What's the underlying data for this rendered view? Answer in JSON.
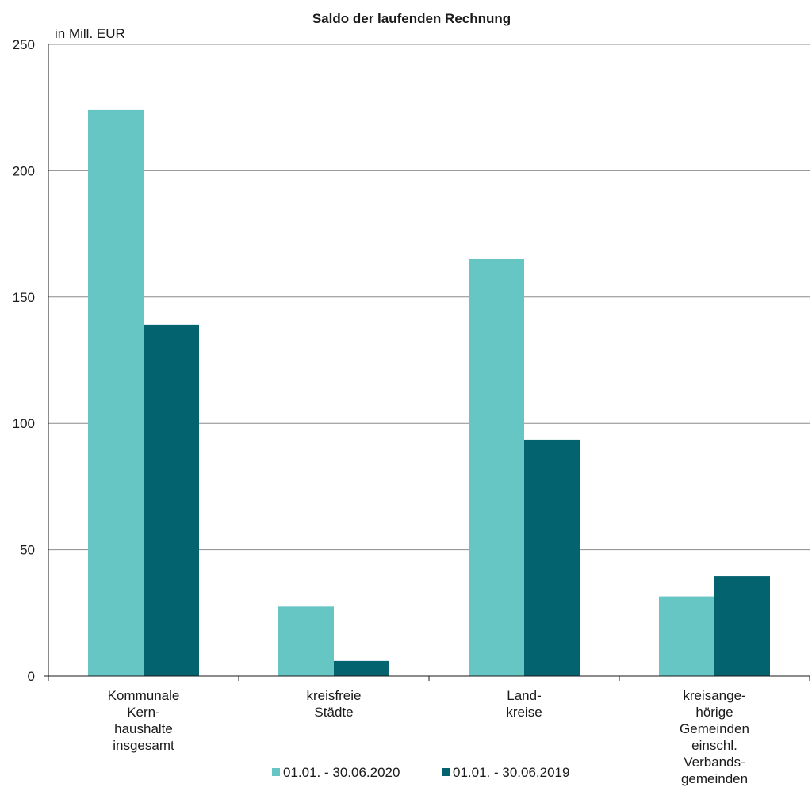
{
  "chart_data": {
    "type": "bar",
    "title": "Saldo der laufenden Rechnung",
    "ylabel": "in Mill. EUR",
    "xlabel": "",
    "ylim": [
      0,
      250
    ],
    "yticks": [
      0,
      50,
      100,
      150,
      200,
      250
    ],
    "grid": true,
    "legend_position": "bottom",
    "categories": [
      "Kommunale Kern- haushalte insgesamt",
      "kreisfreie Städte",
      "Land- kreise",
      "kreisange- hörige Gemeinden einschl. Verbands- gemeinden"
    ],
    "category_lines": [
      [
        "Kommunale",
        "Kern-",
        "haushalte",
        "insgesamt"
      ],
      [
        "kreisfreie",
        "Städte"
      ],
      [
        "Land-",
        "kreise"
      ],
      [
        "kreisange-",
        "hörige",
        "Gemeinden",
        "einschl.",
        "Verbands-",
        "gemeinden"
      ]
    ],
    "series": [
      {
        "name": "01.01. - 30.06.2020",
        "color": "#66c6c4",
        "values": [
          224,
          27.5,
          165,
          31.5
        ]
      },
      {
        "name": "01.01. - 30.06.2019",
        "color": "#03636e",
        "values": [
          139,
          6,
          93.5,
          39.5
        ]
      }
    ]
  }
}
